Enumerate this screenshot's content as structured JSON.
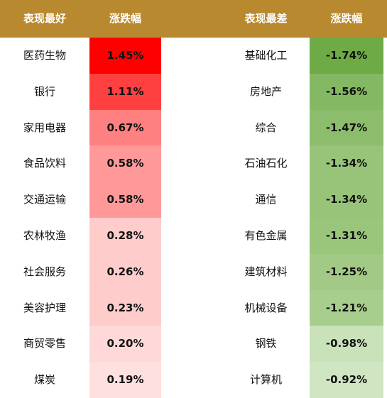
{
  "header": {
    "best_label": "表现最好",
    "best_change_label": "涨跌幅",
    "worst_label": "表现最差",
    "worst_change_label": "涨跌幅",
    "color": "#b9892f"
  },
  "chart_data": {
    "type": "table",
    "columns": [
      "表现最好",
      "涨跌幅",
      "表现最差",
      "涨跌幅"
    ],
    "best": [
      {
        "name": "医药生物",
        "change": "1.45%",
        "value": 1.45
      },
      {
        "name": "银行",
        "change": "1.11%",
        "value": 1.11
      },
      {
        "name": "家用电器",
        "change": "0.67%",
        "value": 0.67
      },
      {
        "name": "食品饮料",
        "change": "0.58%",
        "value": 0.58
      },
      {
        "name": "交通运输",
        "change": "0.58%",
        "value": 0.58
      },
      {
        "name": "农林牧渔",
        "change": "0.28%",
        "value": 0.28
      },
      {
        "name": "社会服务",
        "change": "0.26%",
        "value": 0.26
      },
      {
        "name": "美容护理",
        "change": "0.23%",
        "value": 0.23
      },
      {
        "name": "商贸零售",
        "change": "0.20%",
        "value": 0.2
      },
      {
        "name": "煤炭",
        "change": "0.19%",
        "value": 0.19
      }
    ],
    "worst": [
      {
        "name": "基础化工",
        "change": "-1.74%",
        "value": -1.74
      },
      {
        "name": "房地产",
        "change": "-1.56%",
        "value": -1.56
      },
      {
        "name": "综合",
        "change": "-1.47%",
        "value": -1.47
      },
      {
        "name": "石油石化",
        "change": "-1.34%",
        "value": -1.34
      },
      {
        "name": "通信",
        "change": "-1.34%",
        "value": -1.34
      },
      {
        "name": "有色金属",
        "change": "-1.31%",
        "value": -1.31
      },
      {
        "name": "建筑材料",
        "change": "-1.25%",
        "value": -1.25
      },
      {
        "name": "机械设备",
        "change": "-1.21%",
        "value": -1.21
      },
      {
        "name": "钢铁",
        "change": "-0.98%",
        "value": -0.98
      },
      {
        "name": "计算机",
        "change": "-0.92%",
        "value": -0.92
      }
    ],
    "best_colors": [
      "#ff0000",
      "#ff4040",
      "#ff8080",
      "#ff9999",
      "#ff9999",
      "#ffcccc",
      "#ffcccc",
      "#ffcccc",
      "#ffd9d9",
      "#ffe0e0"
    ],
    "worst_colors": [
      "#6eaa46",
      "#84b862",
      "#8cbd6c",
      "#98c479",
      "#98c479",
      "#9ac67c",
      "#a2ca86",
      "#a8ce8d",
      "#c9e2b9",
      "#d0e6c2"
    ]
  }
}
